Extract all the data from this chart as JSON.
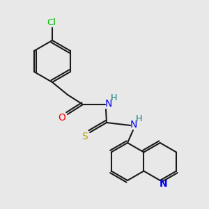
{
  "background_color": "#e8e8e8",
  "bond_color": "#1a1a1a",
  "cl_color": "#00bb00",
  "o_color": "#ff0000",
  "n_color": "#0000ee",
  "s_color": "#bbaa00",
  "h_color": "#007777",
  "figsize": [
    3.0,
    3.0
  ],
  "dpi": 100,
  "atoms": {
    "cl_label": "Cl",
    "o_label": "O",
    "n1_label": "N",
    "h1_label": "H",
    "s_label": "S",
    "n2_label": "N",
    "h2_label": "H",
    "n_quin_label": "N"
  }
}
